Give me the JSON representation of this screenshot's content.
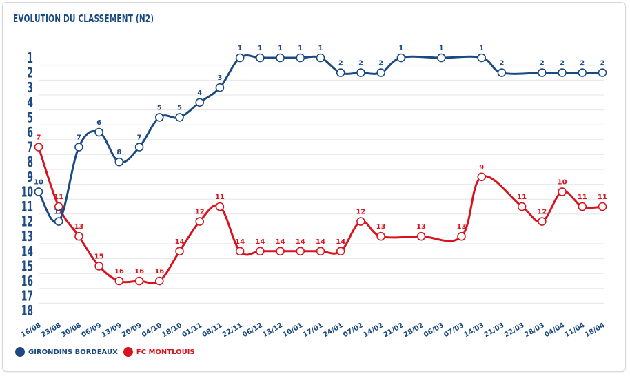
{
  "chart_data": {
    "type": "line",
    "title": "EVOLUTION DU CLASSEMENT (N2)",
    "xlabel": "",
    "ylabel": "",
    "ylim": [
      1,
      18
    ],
    "y_inverted": true,
    "y_ticks": [
      "1",
      "2",
      "3",
      "4",
      "5",
      "6",
      "7",
      "8",
      "9",
      "10",
      "11",
      "12",
      "13",
      "14",
      "15",
      "16",
      "17",
      "18"
    ],
    "grid": true,
    "legend_position": "bottom-left",
    "categories": [
      "16/08",
      "23/08",
      "30/08",
      "06/09",
      "13/09",
      "20/09",
      "04/10",
      "18/10",
      "01/11",
      "08/11",
      "22/11",
      "06/12",
      "13/12",
      "10/01",
      "17/01",
      "24/01",
      "07/02",
      "14/02",
      "21/02",
      "28/02",
      "06/03",
      "07/03",
      "14/03",
      "21/03",
      "22/03",
      "28/03",
      "04/04",
      "11/04",
      "18/04"
    ],
    "series": [
      {
        "name": "GIRONDINS BORDEAUX",
        "color": "#1b4a82",
        "values": [
          10,
          12,
          7,
          6,
          8,
          7,
          5,
          5,
          4,
          3,
          1,
          1,
          1,
          1,
          1,
          2,
          2,
          2,
          1,
          null,
          1,
          null,
          1,
          2,
          null,
          2,
          2,
          2,
          2
        ]
      },
      {
        "name": "FC MONTLOUIS",
        "color": "#d7141e",
        "values": [
          7,
          11,
          13,
          15,
          16,
          16,
          16,
          14,
          12,
          11,
          14,
          14,
          14,
          14,
          14,
          14,
          12,
          13,
          null,
          13,
          null,
          13,
          9,
          null,
          11,
          12,
          10,
          11,
          11
        ]
      }
    ]
  },
  "legend": {
    "items": [
      {
        "label": "GIRONDINS BORDEAUX",
        "color": "#1b4a82"
      },
      {
        "label": "FC MONTLOUIS",
        "color": "#d7141e"
      }
    ]
  }
}
